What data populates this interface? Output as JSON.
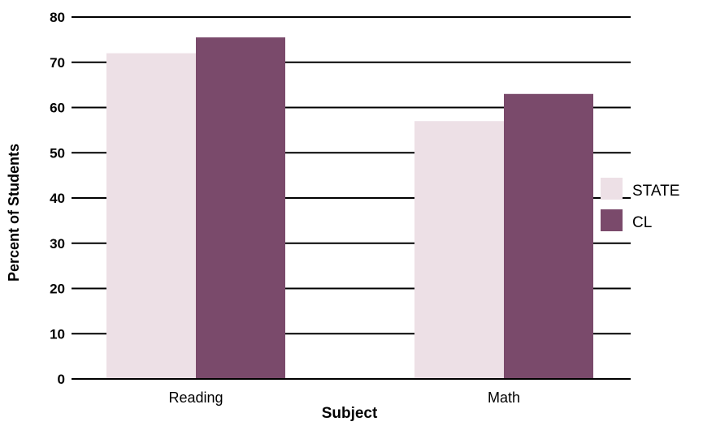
{
  "chart_data": {
    "type": "bar",
    "title": "",
    "xlabel": "Subject",
    "ylabel": "Percent of Students",
    "categories": [
      "Reading",
      "Math"
    ],
    "series": [
      {
        "name": "STATE",
        "values": [
          72,
          57
        ],
        "color": "#ede0e6"
      },
      {
        "name": "CL",
        "values": [
          75.5,
          63
        ],
        "color": "#7a4a6b"
      }
    ],
    "ylim": [
      0,
      80
    ],
    "yticks": [
      0,
      10,
      20,
      30,
      40,
      50,
      60,
      70,
      80
    ],
    "grid": true,
    "legend_position": "right"
  }
}
